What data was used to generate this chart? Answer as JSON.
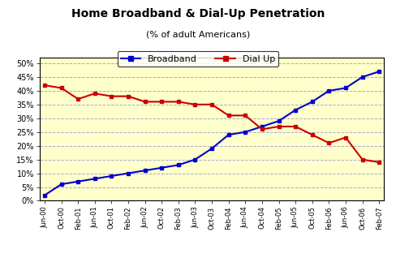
{
  "title": "Home Broadband & Dial-Up Penetration",
  "subtitle": "(% of adult Americans)",
  "x_labels": [
    "Jun-00",
    "Oct-00",
    "Feb-01",
    "Jun-01",
    "Oct-01",
    "Feb-02",
    "Jun-02",
    "Oct-02",
    "Feb-03",
    "Jun-03",
    "Oct-03",
    "Feb-04",
    "Jun-04",
    "Oct-04",
    "Feb-05",
    "Jun-05",
    "Oct-05",
    "Feb-06",
    "Jun-06",
    "Oct-06",
    "Feb-07"
  ],
  "broadband": [
    2,
    6,
    7,
    8,
    9,
    10,
    11,
    12,
    13,
    15,
    19,
    24,
    25,
    27,
    29,
    33,
    36,
    40,
    41,
    45,
    47
  ],
  "dialup": [
    42,
    41,
    37,
    39,
    38,
    38,
    36,
    36,
    36,
    35,
    35,
    31,
    31,
    26,
    27,
    27,
    24,
    21,
    23,
    15,
    14
  ],
  "broadband_color": "#0000CC",
  "dialup_color": "#CC0000",
  "bg_color": "#FFFFCC",
  "grid_color": "#AAAACC",
  "yticks": [
    0,
    5,
    10,
    15,
    20,
    25,
    30,
    35,
    40,
    45,
    50
  ],
  "ylim": [
    0,
    52
  ]
}
